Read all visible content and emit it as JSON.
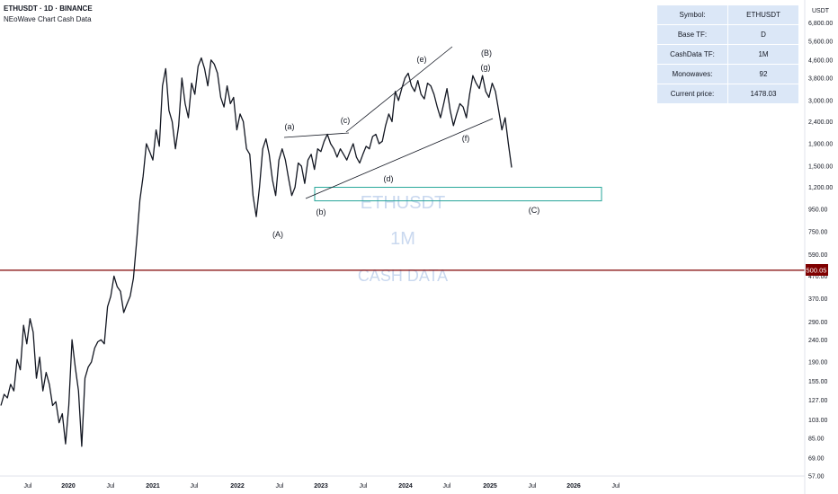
{
  "header": {
    "title": "ETHUSDT · 1D · BINANCE",
    "subtitle": "NEoWave Chart Cash Data"
  },
  "info_table": [
    {
      "label": "Symbol:",
      "value": "ETHUSDT"
    },
    {
      "label": "Base TF:",
      "value": "D"
    },
    {
      "label": "CashData TF:",
      "value": "1M"
    },
    {
      "label": "Monowaves:",
      "value": "92"
    },
    {
      "label": "Current price:",
      "value": "1478.03"
    }
  ],
  "price_axis": {
    "unit": "USDT",
    "ticks": [
      "6,800.00",
      "5,600.00",
      "4,600.00",
      "3,800.00",
      "3,000.00",
      "2,400.00",
      "1,900.00",
      "1,500.00",
      "1,200.00",
      "950.00",
      "750.00",
      "590.00",
      "470.00",
      "370.00",
      "290.00",
      "240.00",
      "190.00",
      "155.00",
      "127.00",
      "103.00",
      "85.00",
      "69.00",
      "57.00"
    ],
    "tick_values": [
      6800,
      5600,
      4600,
      3800,
      3000,
      2400,
      1900,
      1500,
      1200,
      950,
      750,
      590,
      470,
      370,
      290,
      240,
      190,
      155,
      127,
      103,
      85,
      69,
      57
    ]
  },
  "horizontal_line": {
    "label": "500.05",
    "value": 500.05,
    "color": "#7f0000"
  },
  "time_axis": {
    "ticks": [
      "Jul",
      "2020",
      "Jul",
      "2021",
      "Jul",
      "2022",
      "Jul",
      "2023",
      "Jul",
      "2024",
      "Jul",
      "2025",
      "Jul",
      "2026",
      "Jul"
    ],
    "bold": [
      false,
      true,
      false,
      true,
      false,
      true,
      false,
      true,
      false,
      true,
      false,
      true,
      false,
      true,
      false
    ]
  },
  "watermark": [
    "ETHUSDT",
    "1M",
    "CASH DATA"
  ],
  "wave_labels": [
    "(A)",
    "(a)",
    "(b)",
    "(c)",
    "(d)",
    "(e)",
    "(f)",
    "(g)",
    "(B)",
    "(C)"
  ],
  "target_zone": {
    "low": 1040,
    "high": 1200,
    "color": "#26a69a"
  },
  "chart_data": {
    "type": "line",
    "series": [
      {
        "values": [
          120,
          135,
          130,
          150,
          140,
          195,
          175,
          280,
          230,
          300,
          260,
          160,
          200,
          140,
          170,
          150,
          120,
          125,
          100,
          110,
          80,
          120,
          240,
          180,
          140,
          78,
          160,
          180,
          190,
          220,
          235,
          240,
          230,
          340,
          380,
          470,
          420,
          400,
          320,
          350,
          380,
          460,
          680,
          1050,
          1350,
          1900,
          1750,
          1600,
          2200,
          1850,
          3500,
          4200,
          2700,
          2400,
          1800,
          2300,
          3800,
          2900,
          2500,
          3600,
          3200,
          4300,
          4700,
          4200,
          3500,
          4600,
          4400,
          4000,
          3100,
          2800,
          3500,
          2900,
          3100,
          2200,
          2600,
          2400,
          1800,
          1700,
          1100,
          880,
          1200,
          1800,
          2000,
          1700,
          1300,
          1100,
          1600,
          1800,
          1600,
          1320,
          1100,
          1200,
          1550,
          1500,
          1250,
          1600,
          1700,
          1450,
          1800,
          1750,
          1950,
          2100,
          1900,
          1800,
          1650,
          1800,
          1700,
          1600,
          1750,
          1900,
          1650,
          1550,
          1700,
          1850,
          1800,
          2050,
          2100,
          1900,
          1950,
          2300,
          2600,
          2400,
          3300,
          3000,
          3400,
          3800,
          4000,
          3500,
          3300,
          3700,
          3200,
          3050,
          3600,
          3500,
          3200,
          2800,
          2500,
          2900,
          3400,
          2700,
          2300,
          2600,
          2900,
          2800,
          2500,
          3200,
          3900,
          3600,
          3400,
          3900,
          3300,
          3100,
          3600,
          3300,
          2700,
          2200,
          2500,
          1900,
          1478
        ]
      }
    ]
  }
}
